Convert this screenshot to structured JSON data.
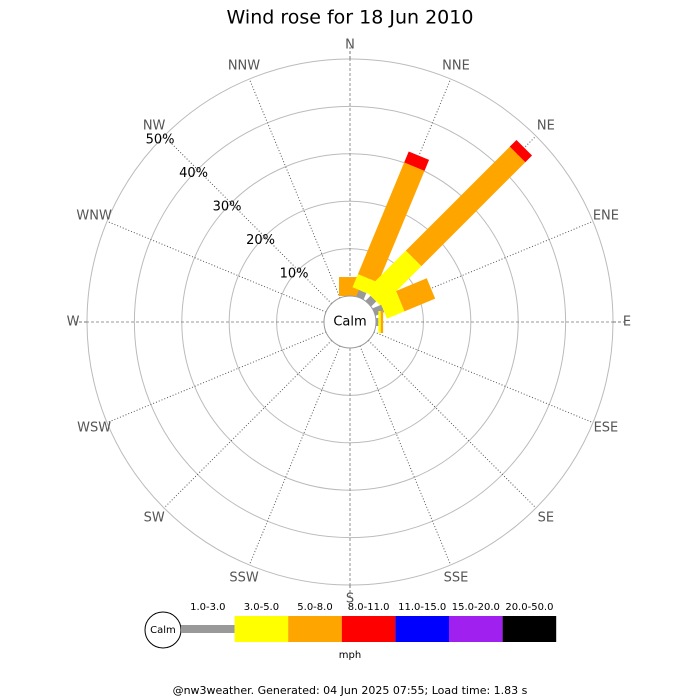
{
  "chart_data": {
    "type": "windrose",
    "title": "Wind rose for 18 Jun 2010",
    "directions": [
      "N",
      "NNE",
      "NE",
      "ENE",
      "E",
      "ESE",
      "SE",
      "SSE",
      "S",
      "SSW",
      "SW",
      "WSW",
      "W",
      "WNW",
      "NW",
      "NNW"
    ],
    "calm_label": "Calm",
    "rlim": [
      0,
      50
    ],
    "rticks": [
      {
        "value": 10,
        "label": "10%"
      },
      {
        "value": 20,
        "label": "20%"
      },
      {
        "value": 30,
        "label": "30%"
      },
      {
        "value": 40,
        "label": "40%"
      },
      {
        "value": 50,
        "label": "50%"
      }
    ],
    "legend_title": "mph",
    "series": [
      {
        "name": "1.0-3.0",
        "color": "#999999",
        "values": [
          0,
          1.5,
          1.5,
          2,
          0.5,
          0,
          0,
          0,
          0,
          0,
          0,
          0,
          0,
          0,
          0,
          0
        ]
      },
      {
        "name": "3.0-5.0",
        "color": "#ffff00",
        "values": [
          0,
          3,
          12,
          4,
          0.5,
          0,
          0,
          0,
          0,
          0,
          0,
          0,
          0,
          0,
          0,
          0
        ]
      },
      {
        "name": "5.0-8.0",
        "color": "#ffa500",
        "values": [
          4,
          25.5,
          31,
          7,
          0.5,
          0,
          0,
          0,
          0,
          0,
          0,
          0,
          0,
          0,
          0,
          0
        ]
      },
      {
        "name": "8.0-11.0",
        "color": "#ff0000",
        "values": [
          0,
          2.5,
          2,
          0,
          0,
          0,
          0,
          0,
          0,
          0,
          0,
          0,
          0,
          0,
          0,
          0
        ]
      },
      {
        "name": "11.0-15.0",
        "color": "#0000ff",
        "values": [
          0,
          0,
          0,
          0,
          0,
          0,
          0,
          0,
          0,
          0,
          0,
          0,
          0,
          0,
          0,
          0
        ]
      },
      {
        "name": "15.0-20.0",
        "color": "#a020f0",
        "values": [
          0,
          0,
          0,
          0,
          0,
          0,
          0,
          0,
          0,
          0,
          0,
          0,
          0,
          0,
          0,
          0
        ]
      },
      {
        "name": "20.0-50.0",
        "color": "#000000",
        "values": [
          0,
          0,
          0,
          0,
          0,
          0,
          0,
          0,
          0,
          0,
          0,
          0,
          0,
          0,
          0,
          0
        ]
      }
    ],
    "footer": "@nw3weather. Generated: 04 Jun 2025 07:55; Load time: 1.83 s"
  }
}
